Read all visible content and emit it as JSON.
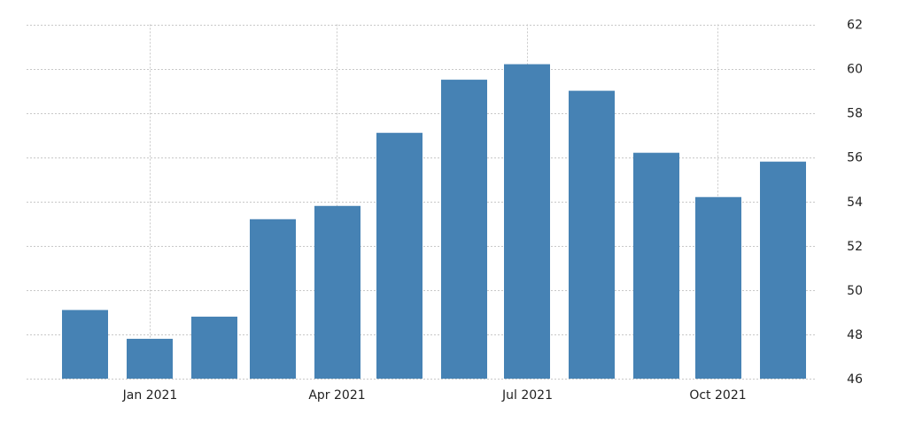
{
  "chart_data": {
    "type": "bar",
    "title": "",
    "xlabel": "",
    "ylabel": "",
    "x": [
      "2020-12",
      "2021-01",
      "2021-02",
      "2021-03",
      "2021-04",
      "2021-05",
      "2021-06",
      "2021-07",
      "2021-08",
      "2021-09",
      "2021-10",
      "2021-11"
    ],
    "values": [
      49.1,
      47.8,
      48.8,
      53.2,
      53.8,
      57.1,
      59.5,
      60.2,
      59.0,
      56.2,
      54.2,
      55.8
    ],
    "ylim": [
      46,
      62
    ],
    "y_ticks": [
      "62",
      "60",
      "58",
      "56",
      "54",
      "52",
      "50",
      "48",
      "46"
    ],
    "x_tick_labels": [
      "Jan 2021",
      "Apr 2021",
      "Jul 2021",
      "Oct 2021"
    ],
    "y_axis_side": "right",
    "grid": true,
    "bar_color": "#4682b4",
    "grid_color": "#c8c8c8"
  }
}
